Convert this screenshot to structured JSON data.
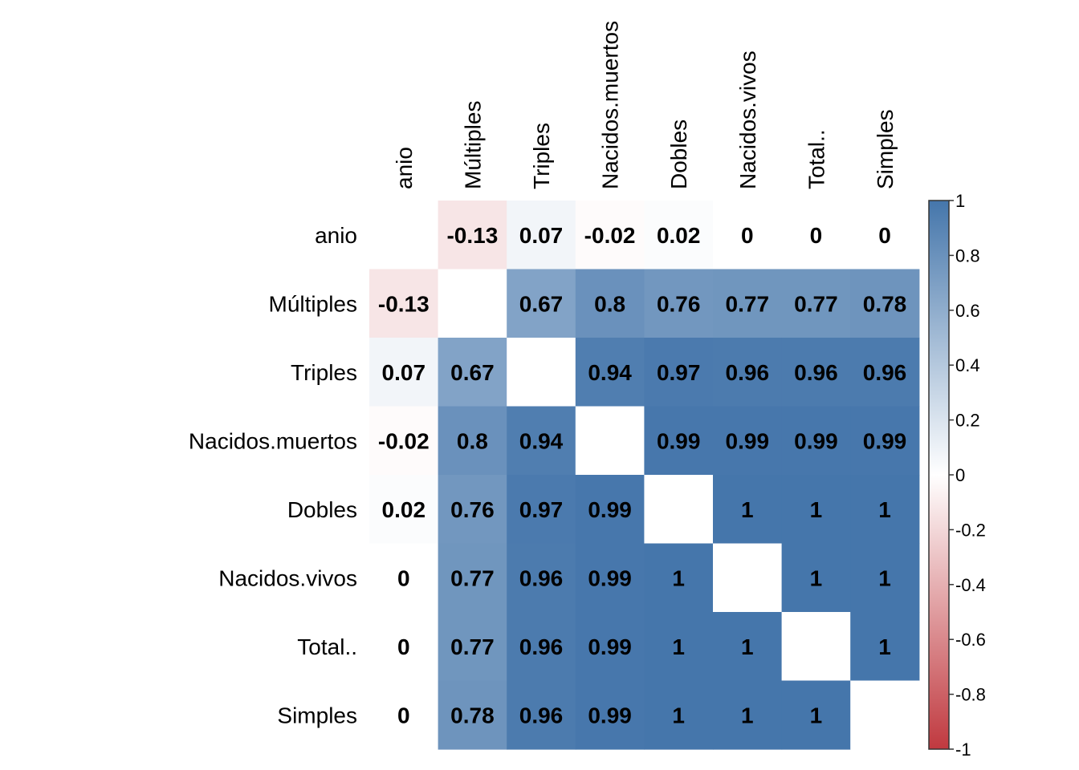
{
  "chart_data": {
    "type": "heatmap",
    "title": "",
    "variables": [
      "anio",
      "Múltiples",
      "Triples",
      "Nacidos.muertos",
      "Dobles",
      "Nacidos.vivos",
      "Total..",
      "Simples"
    ],
    "values": [
      [
        null,
        -0.13,
        0.07,
        -0.02,
        0.02,
        0,
        0,
        0
      ],
      [
        -0.13,
        null,
        0.67,
        0.8,
        0.76,
        0.77,
        0.77,
        0.78
      ],
      [
        0.07,
        0.67,
        null,
        0.94,
        0.97,
        0.96,
        0.96,
        0.96
      ],
      [
        -0.02,
        0.8,
        0.94,
        null,
        0.99,
        0.99,
        0.99,
        0.99
      ],
      [
        0.02,
        0.76,
        0.97,
        0.99,
        null,
        1,
        1,
        1
      ],
      [
        0,
        0.77,
        0.96,
        0.99,
        1,
        null,
        1,
        1
      ],
      [
        0,
        0.77,
        0.96,
        0.99,
        1,
        1,
        null,
        1
      ],
      [
        0,
        0.78,
        0.96,
        0.99,
        1,
        1,
        1,
        null
      ]
    ],
    "value_labels": [
      [
        "",
        "-0.13",
        "0.07",
        "-0.02",
        "0.02",
        "0",
        "0",
        "0"
      ],
      [
        "-0.13",
        "",
        "0.67",
        "0.8",
        "0.76",
        "0.77",
        "0.77",
        "0.78"
      ],
      [
        "0.07",
        "0.67",
        "",
        "0.94",
        "0.97",
        "0.96",
        "0.96",
        "0.96"
      ],
      [
        "-0.02",
        "0.8",
        "0.94",
        "",
        "0.99",
        "0.99",
        "0.99",
        "0.99"
      ],
      [
        "0.02",
        "0.76",
        "0.97",
        "0.99",
        "",
        "1",
        "1",
        "1"
      ],
      [
        "0",
        "0.77",
        "0.96",
        "0.99",
        "1",
        "",
        "1",
        "1"
      ],
      [
        "0",
        "0.77",
        "0.96",
        "0.99",
        "1",
        "1",
        "",
        "1"
      ],
      [
        "0",
        "0.78",
        "0.96",
        "0.99",
        "1",
        "1",
        "1",
        ""
      ]
    ],
    "colorbar": {
      "range": [
        -1,
        1
      ],
      "tick_values": [
        1,
        0.8,
        0.6,
        0.4,
        0.2,
        0,
        -0.2,
        -0.4,
        -0.6,
        -0.8,
        -1
      ],
      "tick_labels": [
        "1",
        "0.8",
        "0.6",
        "0.4",
        "0.2",
        "0",
        "-0.2",
        "-0.4",
        "-0.6",
        "-0.8",
        "-1"
      ],
      "colors": {
        "negative": "#c0393f",
        "neutral": "#ffffff",
        "positive": "#4576ab"
      }
    },
    "legend_placement": "right",
    "grid": false
  }
}
